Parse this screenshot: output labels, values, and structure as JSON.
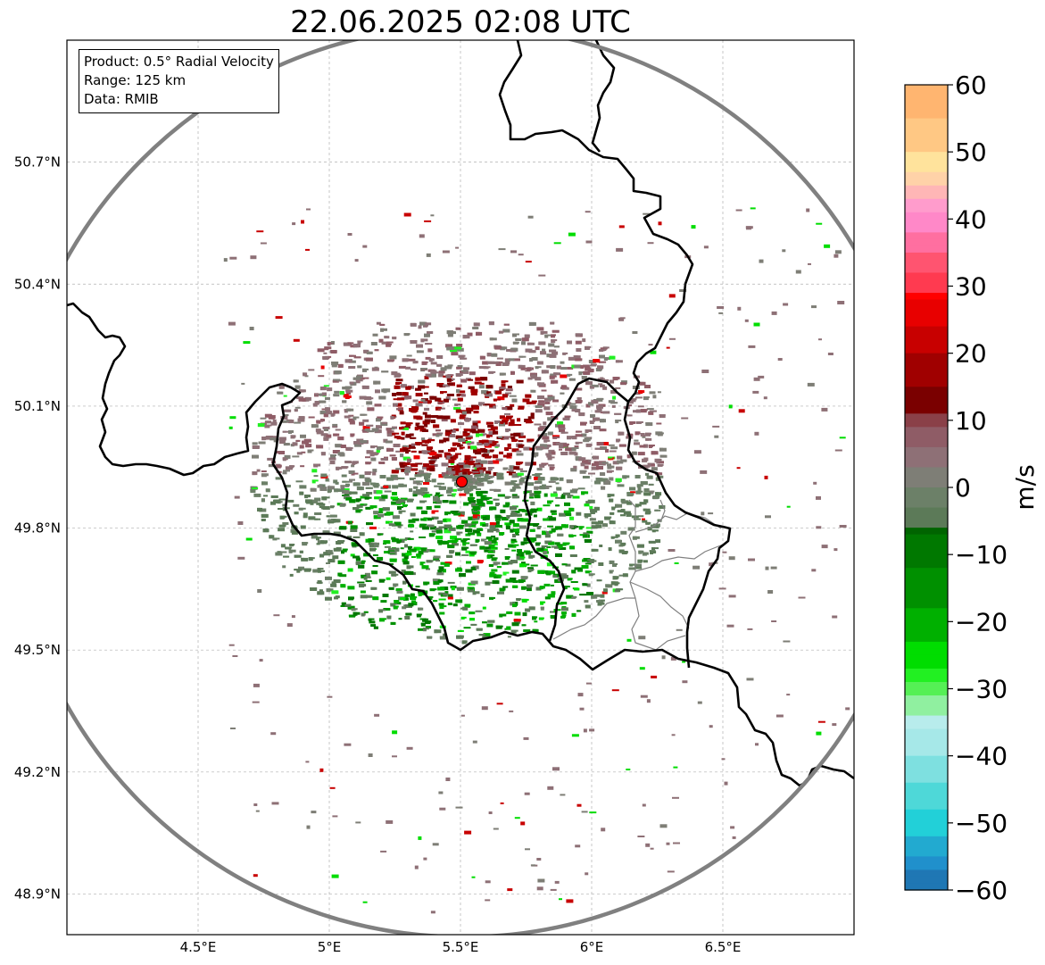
{
  "title": "22.06.2025 02:08 UTC",
  "info": {
    "product": "Product: 0.5° Radial Velocity",
    "range": "Range: 125 km",
    "source": "Data: RMIB"
  },
  "map": {
    "lon_range": [
      4.0,
      7.0
    ],
    "lat_range": [
      48.8,
      51.0
    ],
    "lon_ticks": [
      {
        "value": 4.5,
        "label": "4.5°E"
      },
      {
        "value": 5.0,
        "label": "5°E"
      },
      {
        "value": 5.5,
        "label": "5.5°E"
      },
      {
        "value": 6.0,
        "label": "6°E"
      },
      {
        "value": 6.5,
        "label": "6.5°E"
      }
    ],
    "lat_ticks": [
      {
        "value": 50.7,
        "label": "50.7°N"
      },
      {
        "value": 50.4,
        "label": "50.4°N"
      },
      {
        "value": 50.1,
        "label": "50.1°N"
      },
      {
        "value": 49.8,
        "label": "49.8°N"
      },
      {
        "value": 49.5,
        "label": "49.5°N"
      },
      {
        "value": 49.2,
        "label": "49.2°N"
      },
      {
        "value": 48.9,
        "label": "48.9°N"
      }
    ],
    "radar_site": {
      "lon": 5.505,
      "lat": 49.914
    },
    "range_ring_color": "#808080",
    "gridline_color": "#b0b0b0",
    "border_color": "#000000",
    "subregion_color": "#808080"
  },
  "colorbar": {
    "label": "m/s",
    "min": -60,
    "max": 60,
    "ticks": [
      {
        "value": 60,
        "label": "60"
      },
      {
        "value": 50,
        "label": "50"
      },
      {
        "value": 40,
        "label": "40"
      },
      {
        "value": 30,
        "label": "30"
      },
      {
        "value": 20,
        "label": "20"
      },
      {
        "value": 10,
        "label": "10"
      },
      {
        "value": 0,
        "label": "0"
      },
      {
        "value": -10,
        "label": "−10"
      },
      {
        "value": -20,
        "label": "−20"
      },
      {
        "value": -30,
        "label": "−30"
      },
      {
        "value": -40,
        "label": "−40"
      },
      {
        "value": -50,
        "label": "−50"
      },
      {
        "value": -60,
        "label": "−60"
      }
    ],
    "stops": [
      {
        "v": 60,
        "c": "#ff9a55"
      },
      {
        "v": 55,
        "c": "#ffb570"
      },
      {
        "v": 50,
        "c": "#ffc884"
      },
      {
        "v": 47,
        "c": "#ffe39c"
      },
      {
        "v": 45,
        "c": "#ffd2a8"
      },
      {
        "v": 43,
        "c": "#ffb6b6"
      },
      {
        "v": 41,
        "c": "#ff9ccc"
      },
      {
        "v": 38,
        "c": "#ff88c8"
      },
      {
        "v": 35,
        "c": "#ff6fa0"
      },
      {
        "v": 32,
        "c": "#ff5470"
      },
      {
        "v": 29,
        "c": "#ff3a50"
      },
      {
        "v": 28,
        "c": "#ff0000"
      },
      {
        "v": 24,
        "c": "#e80000"
      },
      {
        "v": 20,
        "c": "#c80000"
      },
      {
        "v": 15,
        "c": "#a00000"
      },
      {
        "v": 11,
        "c": "#7a0000"
      },
      {
        "v": 9,
        "c": "#8a4048"
      },
      {
        "v": 6,
        "c": "#8f5c66"
      },
      {
        "v": 3,
        "c": "#8e7076"
      },
      {
        "v": 0,
        "c": "#7e7e76"
      },
      {
        "v": -3,
        "c": "#6c8068"
      },
      {
        "v": -6,
        "c": "#5c7a58"
      },
      {
        "v": -7,
        "c": "#006400"
      },
      {
        "v": -12,
        "c": "#007800"
      },
      {
        "v": -18,
        "c": "#009000"
      },
      {
        "v": -23,
        "c": "#00b000"
      },
      {
        "v": -27,
        "c": "#00dd00"
      },
      {
        "v": -29,
        "c": "#22f022"
      },
      {
        "v": -31,
        "c": "#55f055"
      },
      {
        "v": -34,
        "c": "#90f0a0"
      },
      {
        "v": -36,
        "c": "#b8ecec"
      },
      {
        "v": -40,
        "c": "#a6e8e8"
      },
      {
        "v": -44,
        "c": "#7ee0e0"
      },
      {
        "v": -48,
        "c": "#4ed8d8"
      },
      {
        "v": -52,
        "c": "#22d0d8"
      },
      {
        "v": -55,
        "c": "#22aad0"
      },
      {
        "v": -57,
        "c": "#2090cc"
      },
      {
        "v": -60,
        "c": "#1f77b4"
      }
    ]
  }
}
